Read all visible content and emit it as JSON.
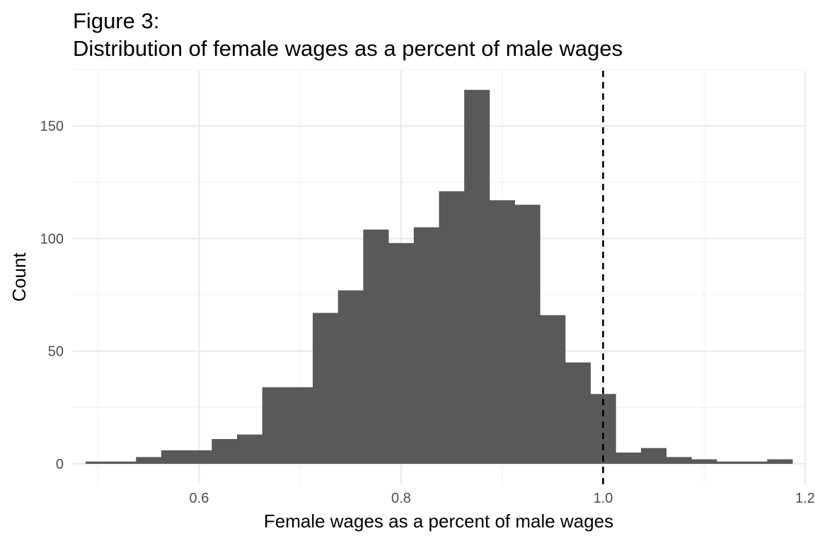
{
  "chart_data": {
    "type": "bar",
    "title_lines": [
      "Figure 3:",
      "Distribution of female wages as a percent of male wages"
    ],
    "xlabel": "Female wages as a percent of male wages",
    "ylabel": "Count",
    "xlim": [
      0.475,
      1.2
    ],
    "ylim": [
      0,
      172
    ],
    "x_ticks": [
      0.6,
      0.8,
      1.0,
      1.2
    ],
    "x_tick_labels": [
      "0.6",
      "0.8",
      "1.0",
      "1.2"
    ],
    "y_ticks": [
      0,
      50,
      100,
      150
    ],
    "y_tick_labels": [
      "0",
      "50",
      "100",
      "150"
    ],
    "grid": true,
    "bin_width": 0.025,
    "bins": [
      {
        "x0": 0.4875,
        "x1": 0.5125,
        "count": 1
      },
      {
        "x0": 0.5125,
        "x1": 0.5375,
        "count": 1
      },
      {
        "x0": 0.5375,
        "x1": 0.5625,
        "count": 3
      },
      {
        "x0": 0.5625,
        "x1": 0.5875,
        "count": 6
      },
      {
        "x0": 0.5875,
        "x1": 0.6125,
        "count": 6
      },
      {
        "x0": 0.6125,
        "x1": 0.6375,
        "count": 11
      },
      {
        "x0": 0.6375,
        "x1": 0.6625,
        "count": 13
      },
      {
        "x0": 0.6625,
        "x1": 0.6875,
        "count": 34
      },
      {
        "x0": 0.6875,
        "x1": 0.7125,
        "count": 34
      },
      {
        "x0": 0.7125,
        "x1": 0.7375,
        "count": 67
      },
      {
        "x0": 0.7375,
        "x1": 0.7625,
        "count": 77
      },
      {
        "x0": 0.7625,
        "x1": 0.7875,
        "count": 104
      },
      {
        "x0": 0.7875,
        "x1": 0.8125,
        "count": 98
      },
      {
        "x0": 0.8125,
        "x1": 0.8375,
        "count": 105
      },
      {
        "x0": 0.8375,
        "x1": 0.8625,
        "count": 121
      },
      {
        "x0": 0.8625,
        "x1": 0.8875,
        "count": 166
      },
      {
        "x0": 0.8875,
        "x1": 0.9125,
        "count": 117
      },
      {
        "x0": 0.9125,
        "x1": 0.9375,
        "count": 115
      },
      {
        "x0": 0.9375,
        "x1": 0.9625,
        "count": 66
      },
      {
        "x0": 0.9625,
        "x1": 0.9875,
        "count": 45
      },
      {
        "x0": 0.9875,
        "x1": 1.0125,
        "count": 31
      },
      {
        "x0": 1.0125,
        "x1": 1.0375,
        "count": 5
      },
      {
        "x0": 1.0375,
        "x1": 1.0625,
        "count": 7
      },
      {
        "x0": 1.0625,
        "x1": 1.0875,
        "count": 3
      },
      {
        "x0": 1.0875,
        "x1": 1.1125,
        "count": 2
      },
      {
        "x0": 1.1125,
        "x1": 1.1375,
        "count": 1
      },
      {
        "x0": 1.1375,
        "x1": 1.1625,
        "count": 1
      },
      {
        "x0": 1.1625,
        "x1": 1.1875,
        "count": 2
      }
    ],
    "reference_line": {
      "x": 1.0,
      "style": "dashed",
      "color": "#000000"
    },
    "bar_color": "#595959",
    "grid_major_color": "#ebebeb",
    "grid_minor_color": "#f2f2f2",
    "tick_label_color": "#4d4d4d"
  }
}
